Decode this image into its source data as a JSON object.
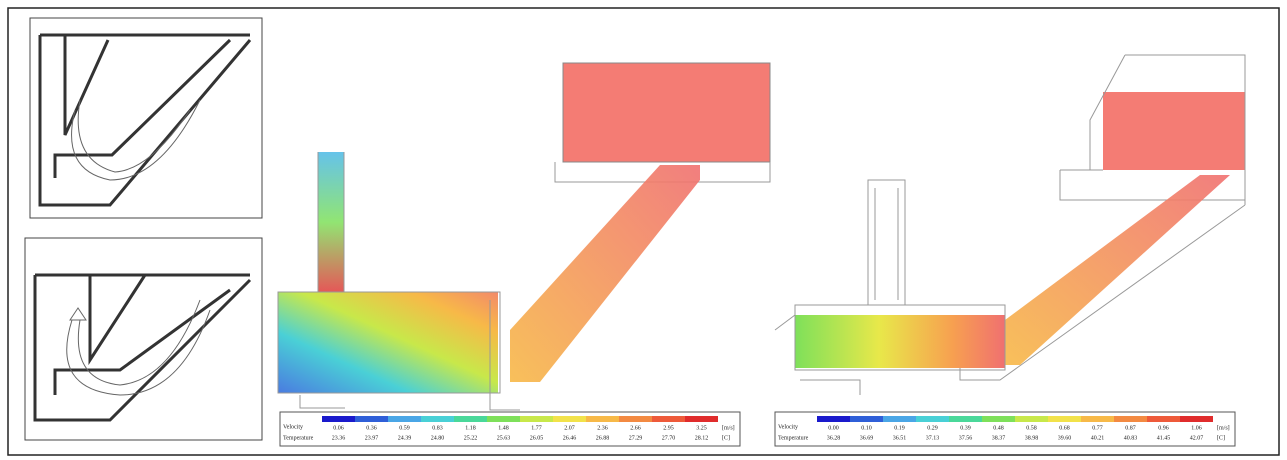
{
  "colorbar": [
    "#1a1acc",
    "#2f5fd8",
    "#4aa6e6",
    "#49d0d6",
    "#4ad89a",
    "#7ee05a",
    "#c8e84a",
    "#f2e24a",
    "#f7b948",
    "#f38a42",
    "#ee5a3a",
    "#e02c2c"
  ],
  "legends": [
    {
      "velocity_label": "Velocity",
      "temperature_label": "Temperature",
      "velocity_unit": "[m/s]",
      "temperature_unit": "[C]",
      "velocity": [
        "0.06",
        "0.36",
        "0.59",
        "0.83",
        "1.18",
        "1.48",
        "1.77",
        "2.07",
        "2.36",
        "2.66",
        "2.95",
        "3.25"
      ],
      "temperature": [
        "23.36",
        "23.97",
        "24.39",
        "24.80",
        "25.22",
        "25.63",
        "26.05",
        "26.46",
        "26.88",
        "27.29",
        "27.70",
        "28.12"
      ]
    },
    {
      "velocity_label": "Velocity",
      "temperature_label": "Temperature",
      "velocity_unit": "[m/s]",
      "temperature_unit": "[C]",
      "velocity": [
        "0.00",
        "0.10",
        "0.19",
        "0.29",
        "0.39",
        "0.48",
        "0.58",
        "0.68",
        "0.77",
        "0.87",
        "0.96",
        "1.06"
      ],
      "temperature": [
        "36.28",
        "36.69",
        "36.51",
        "37.13",
        "37.56",
        "38.37",
        "38.98",
        "39.60",
        "40.21",
        "40.83",
        "41.45",
        "42.07"
      ]
    }
  ]
}
